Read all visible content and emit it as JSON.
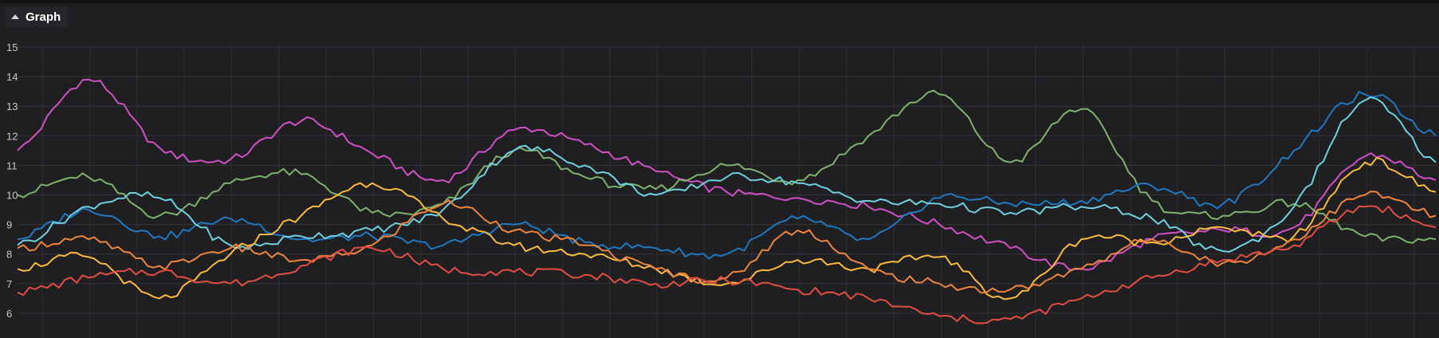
{
  "panel": {
    "title": "Graph",
    "collapse_icon": "chevron-up-icon"
  },
  "chart_data": {
    "type": "line",
    "ylim": [
      5.3,
      15.1
    ],
    "yticks": [
      6,
      7,
      8,
      9,
      10,
      11,
      12,
      13,
      14,
      15
    ],
    "x": [
      0,
      5,
      10,
      15,
      20,
      25,
      30,
      35,
      40,
      45,
      50,
      55,
      60,
      65,
      70,
      75,
      80,
      85,
      90,
      95,
      100
    ],
    "grid": true,
    "legend": "none",
    "series": [
      {
        "color": "#d14fc7",
        "values": [
          11.5,
          13.9,
          11.6,
          11.2,
          12.5,
          11.4,
          10.5,
          12.2,
          11.7,
          10.8,
          10.1,
          9.9,
          9.6,
          9.0,
          8.2,
          7.5,
          8.5,
          8.8,
          8.9,
          11.3,
          10.5
        ]
      },
      {
        "color": "#7eb26d",
        "values": [
          10.0,
          10.6,
          9.3,
          10.4,
          10.7,
          9.4,
          9.7,
          11.5,
          10.6,
          10.2,
          11.0,
          10.5,
          12.0,
          13.4,
          11.1,
          12.9,
          9.8,
          9.3,
          9.7,
          8.6,
          8.5
        ]
      },
      {
        "color": "#1f78c1",
        "values": [
          8.5,
          9.5,
          8.6,
          9.2,
          8.5,
          8.6,
          8.3,
          9.0,
          8.4,
          8.2,
          8.0,
          9.2,
          8.5,
          9.9,
          9.7,
          9.8,
          10.3,
          9.7,
          11.5,
          13.4,
          12.0
        ]
      },
      {
        "color": "#6ed0e0",
        "values": [
          8.3,
          9.6,
          9.9,
          8.3,
          8.6,
          8.8,
          9.5,
          11.5,
          11.0,
          10.0,
          10.6,
          10.4,
          9.8,
          9.7,
          9.4,
          9.6,
          9.2,
          8.1,
          9.6,
          13.2,
          11.1
        ]
      },
      {
        "color": "#f9ba3e",
        "values": [
          7.5,
          7.9,
          6.5,
          8.0,
          9.3,
          10.4,
          9.2,
          8.3,
          8.0,
          7.5,
          7.0,
          7.8,
          7.5,
          7.9,
          6.5,
          8.5,
          8.4,
          8.9,
          8.6,
          11.1,
          10.1
        ]
      },
      {
        "color": "#ef843c",
        "values": [
          8.2,
          8.5,
          7.6,
          8.2,
          7.8,
          8.3,
          9.7,
          8.8,
          8.3,
          7.5,
          7.2,
          8.8,
          7.5,
          7.0,
          6.8,
          7.5,
          8.5,
          7.7,
          8.5,
          10.0,
          9.3
        ]
      },
      {
        "color": "#e24d42",
        "values": [
          6.7,
          7.2,
          7.4,
          7.0,
          7.6,
          8.2,
          7.5,
          7.4,
          7.3,
          7.0,
          7.1,
          6.8,
          6.5,
          5.9,
          5.8,
          6.5,
          7.2,
          7.8,
          8.3,
          9.6,
          8.9
        ]
      }
    ]
  }
}
